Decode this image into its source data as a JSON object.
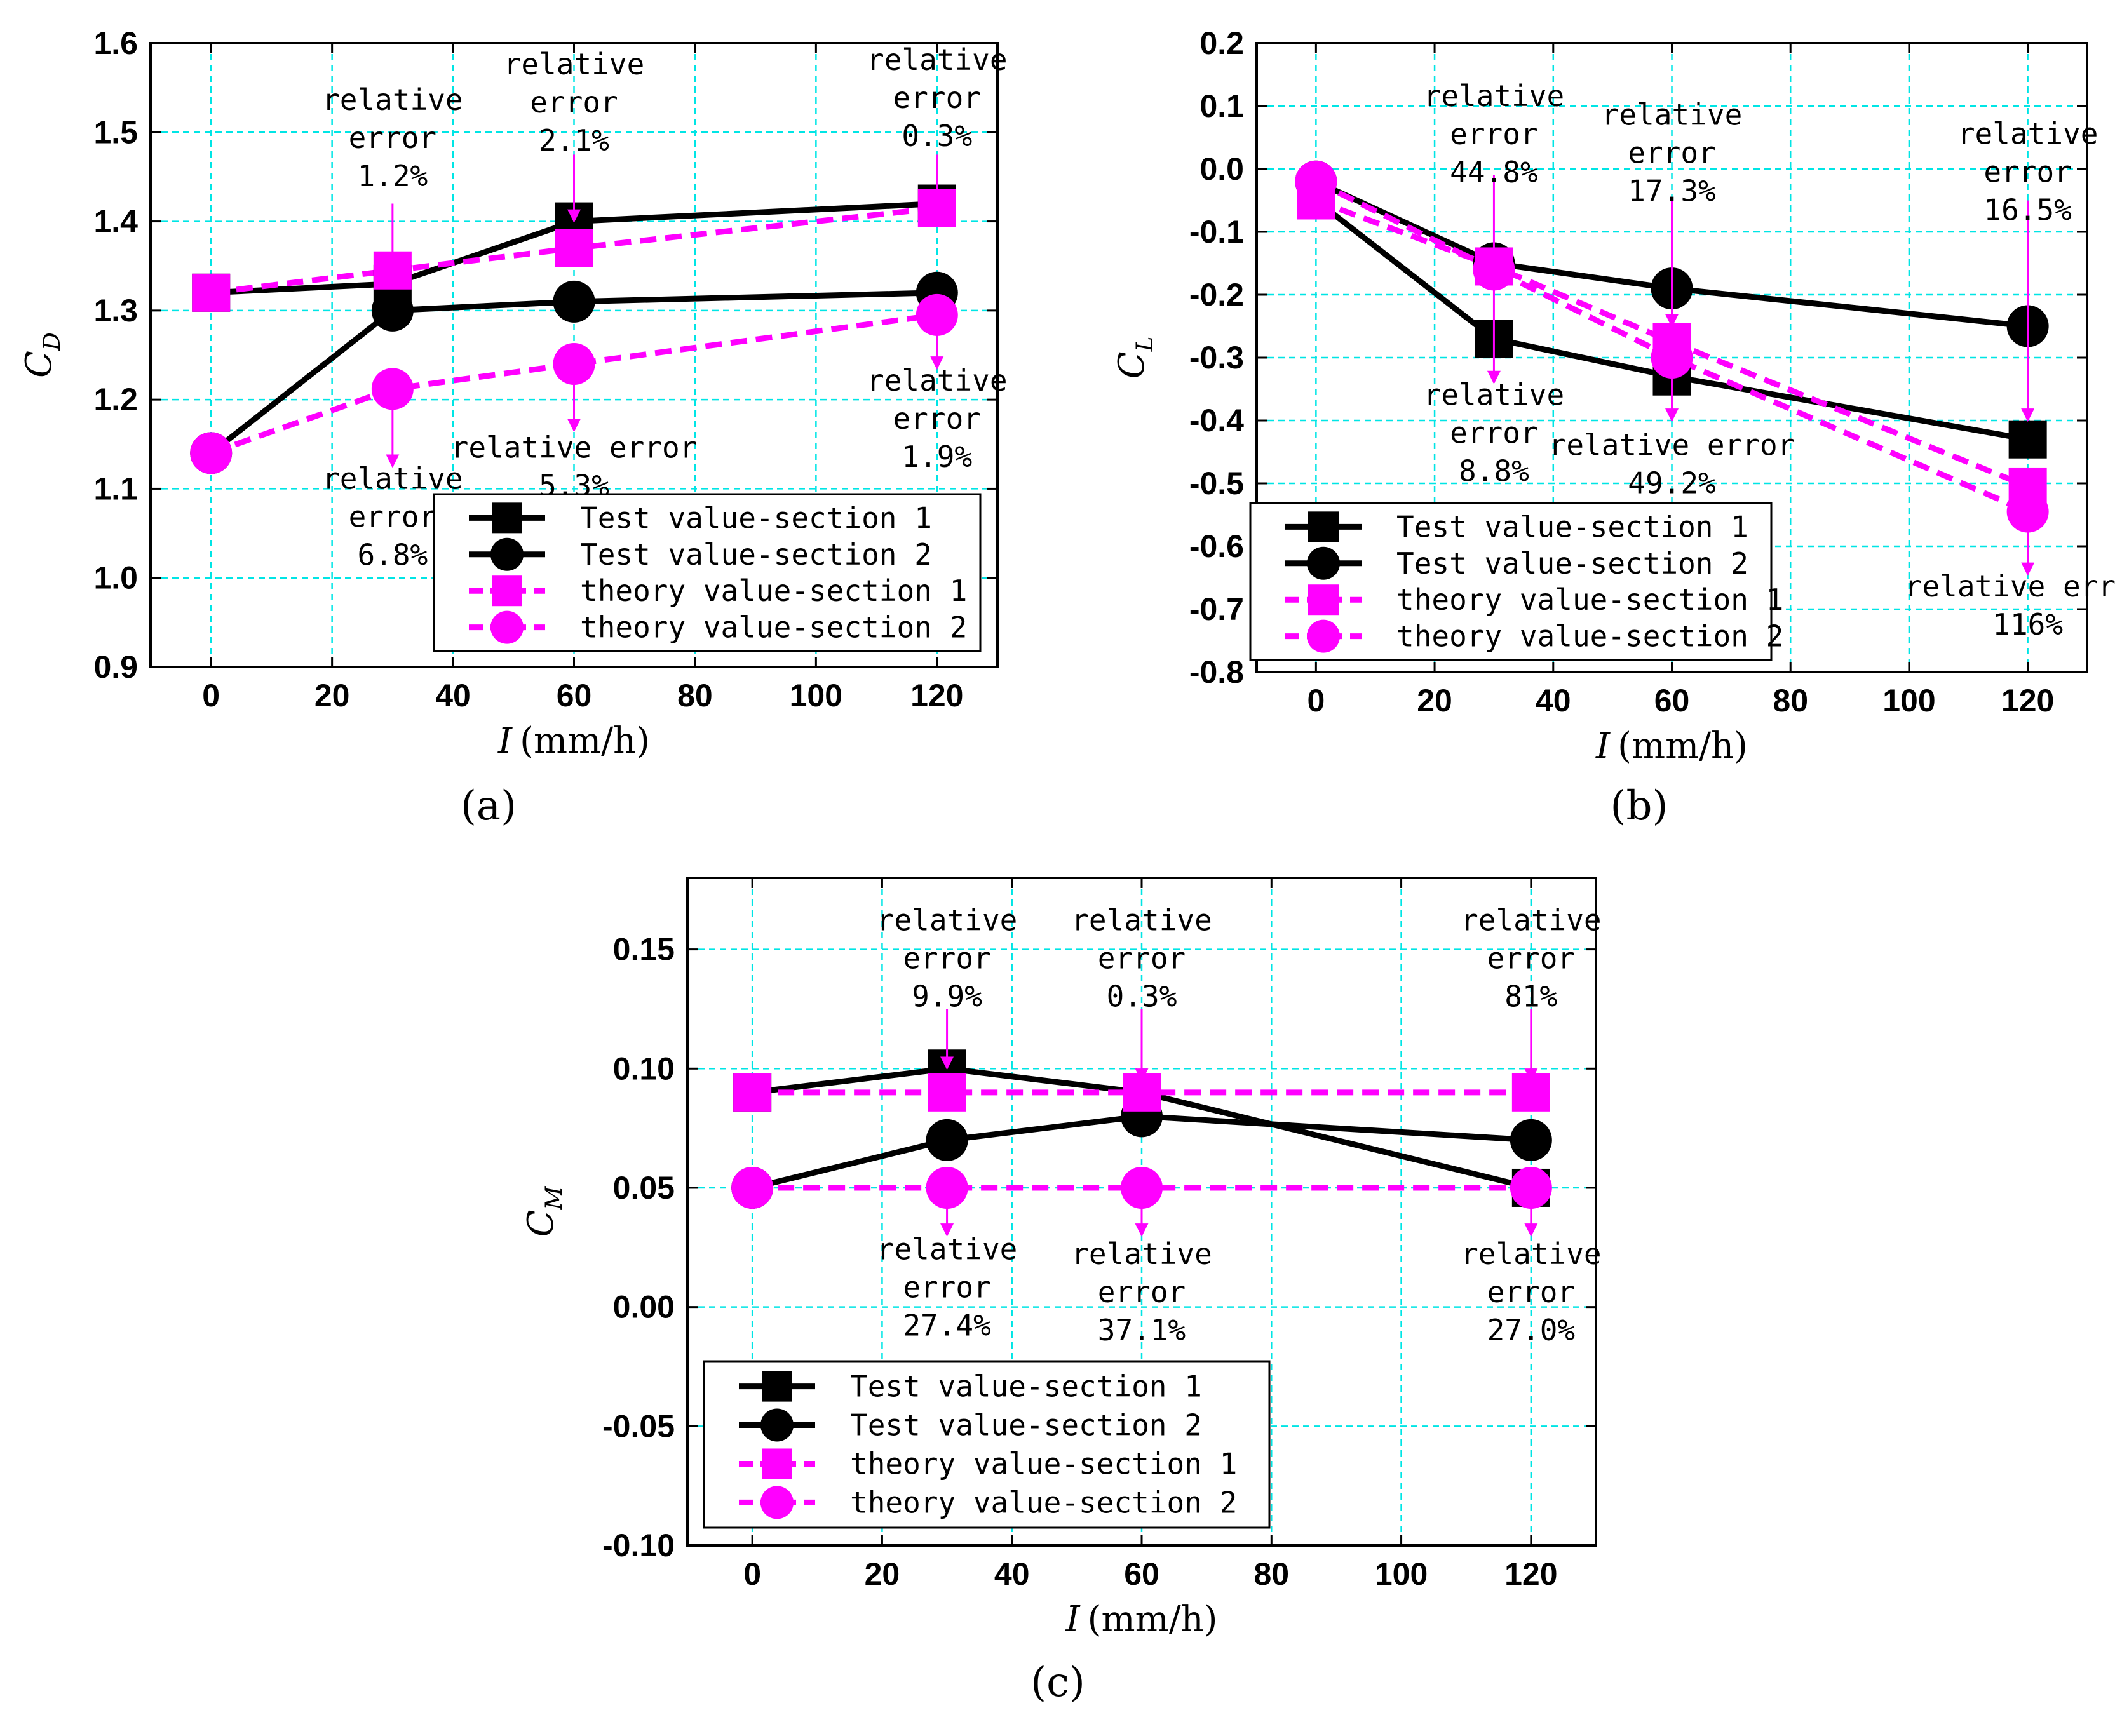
{
  "colors": {
    "test": "#000000",
    "theory": "#ff00ff",
    "grid": "#00e5e5",
    "arrow": "#ff00ff"
  },
  "chart_data": [
    {
      "id": "a",
      "type": "line",
      "subfigure_label": "(a)",
      "ylabel_main": "C",
      "ylabel_sub": "D",
      "xlabel_var": "I",
      "xlabel_unit": "(mm/h)",
      "x": [
        0,
        30,
        60,
        120
      ],
      "xticks": [
        "0",
        "20",
        "40",
        "60",
        "80",
        "100",
        "120"
      ],
      "yticks": [
        "0.9",
        "1.0",
        "1.1",
        "1.2",
        "1.3",
        "1.4",
        "1.5",
        "1.6"
      ],
      "xlim": [
        -10,
        130
      ],
      "ylim": [
        0.9,
        1.6
      ],
      "series": [
        {
          "name": "Test value-section 1",
          "marker": "square",
          "style": "test",
          "values": [
            1.32,
            1.33,
            1.4,
            1.42
          ]
        },
        {
          "name": "Test value-section 2",
          "marker": "circle",
          "style": "test",
          "values": [
            1.14,
            1.3,
            1.31,
            1.32
          ]
        },
        {
          "name": "theory value-section 1",
          "marker": "square",
          "style": "theory",
          "values": [
            1.32,
            1.345,
            1.37,
            1.415
          ]
        },
        {
          "name": "theory value-section 2",
          "marker": "circle",
          "style": "theory",
          "values": [
            1.14,
            1.212,
            1.24,
            1.295
          ]
        }
      ],
      "annotations": [
        {
          "lines": [
            "relative",
            "error",
            "1.2%"
          ],
          "x": 30,
          "arrow_from": 1.42,
          "arrow_to": 1.345,
          "text_y": 1.525
        },
        {
          "lines": [
            "relative",
            "error",
            "2.1%"
          ],
          "x": 60,
          "arrow_from": 1.475,
          "arrow_to": 1.4,
          "text_y": 1.565
        },
        {
          "lines": [
            "relative",
            "error",
            "0.3%"
          ],
          "x": 120,
          "arrow_from": 1.475,
          "arrow_to": 1.42,
          "text_y": 1.57
        },
        {
          "lines": [
            "relative",
            "error",
            "6.8%"
          ],
          "x": 30,
          "arrow_from": 1.195,
          "arrow_to": 1.125,
          "text_y": 1.1
        },
        {
          "lines": [
            "relative error",
            "5.3%"
          ],
          "x": 60,
          "arrow_from": 1.225,
          "arrow_to": 1.165,
          "text_y": 1.135
        },
        {
          "lines": [
            "relative",
            "error",
            "1.9%"
          ],
          "x": 120,
          "arrow_from": 1.285,
          "arrow_to": 1.235,
          "text_y": 1.21
        }
      ],
      "legend_position": "bottom-right"
    },
    {
      "id": "b",
      "type": "line",
      "subfigure_label": "(b)",
      "ylabel_main": "C",
      "ylabel_sub": "L",
      "xlabel_var": "I",
      "xlabel_unit": "(mm/h)",
      "x": [
        0,
        30,
        60,
        120
      ],
      "xticks": [
        "0",
        "20",
        "40",
        "60",
        "80",
        "100",
        "120"
      ],
      "yticks": [
        "-0.8",
        "-0.7",
        "-0.6",
        "-0.5",
        "-0.4",
        "-0.3",
        "-0.2",
        "-0.1",
        "0.0",
        "0.1",
        "0.2"
      ],
      "xlim": [
        -10,
        130
      ],
      "ylim": [
        -0.8,
        0.2
      ],
      "series": [
        {
          "name": "Test value-section 1",
          "marker": "square",
          "style": "test",
          "values": [
            -0.05,
            -0.27,
            -0.33,
            -0.43
          ]
        },
        {
          "name": "Test value-section 2",
          "marker": "circle",
          "style": "test",
          "values": [
            -0.02,
            -0.15,
            -0.19,
            -0.25
          ]
        },
        {
          "name": "theory value-section 1",
          "marker": "square",
          "style": "theory",
          "values": [
            -0.05,
            -0.155,
            -0.275,
            -0.505
          ]
        },
        {
          "name": "theory value-section 2",
          "marker": "circle",
          "style": "theory",
          "values": [
            -0.02,
            -0.16,
            -0.3,
            -0.545
          ]
        }
      ],
      "annotations": [
        {
          "lines": [
            "relative",
            "error",
            "44.8%"
          ],
          "x": 30,
          "arrow_from": -0.01,
          "arrow_to": -0.145,
          "text_y": 0.1
        },
        {
          "lines": [
            "relative",
            "error",
            "17.3%"
          ],
          "x": 60,
          "arrow_from": -0.05,
          "arrow_to": -0.25,
          "text_y": 0.07
        },
        {
          "lines": [
            "relative",
            "error",
            "16.5%"
          ],
          "x": 120,
          "arrow_from": -0.05,
          "arrow_to": -0.4,
          "text_y": 0.04
        },
        {
          "lines": [
            "relative",
            "error",
            "8.8%"
          ],
          "x": 30,
          "arrow_from": -0.17,
          "arrow_to": -0.34,
          "text_y": -0.375
        },
        {
          "lines": [
            "relative error",
            "49.2%"
          ],
          "x": 60,
          "arrow_from": -0.29,
          "arrow_to": -0.4,
          "text_y": -0.455
        },
        {
          "lines": [
            "relative error",
            "116%"
          ],
          "x": 120,
          "arrow_from": -0.56,
          "arrow_to": -0.645,
          "text_y": -0.68
        }
      ],
      "legend_position": "bottom-left"
    },
    {
      "id": "c",
      "type": "line",
      "subfigure_label": "(c)",
      "ylabel_main": "C",
      "ylabel_sub": "M",
      "xlabel_var": "I",
      "xlabel_unit": "(mm/h)",
      "x": [
        0,
        30,
        60,
        120
      ],
      "xticks": [
        "0",
        "20",
        "40",
        "60",
        "80",
        "100",
        "120"
      ],
      "yticks": [
        "-0.10",
        "-0.05",
        "0.00",
        "0.05",
        "0.10",
        "0.15"
      ],
      "xlim": [
        -10,
        130
      ],
      "ylim": [
        -0.1,
        0.18
      ],
      "series": [
        {
          "name": "Test value-section 1",
          "marker": "square",
          "style": "test",
          "values": [
            0.09,
            0.1,
            0.09,
            0.05
          ]
        },
        {
          "name": "Test value-section 2",
          "marker": "circle",
          "style": "test",
          "values": [
            0.05,
            0.07,
            0.08,
            0.07
          ]
        },
        {
          "name": "theory value-section 1",
          "marker": "square",
          "style": "theory",
          "values": [
            0.09,
            0.09,
            0.09,
            0.09
          ]
        },
        {
          "name": "theory value-section 2",
          "marker": "circle",
          "style": "theory",
          "values": [
            0.05,
            0.05,
            0.05,
            0.05
          ]
        }
      ],
      "annotations": [
        {
          "lines": [
            "relative",
            "error",
            "9.9%"
          ],
          "x": 30,
          "arrow_from": 0.125,
          "arrow_to": 0.1,
          "text_y": 0.158
        },
        {
          "lines": [
            "relative",
            "error",
            "0.3%"
          ],
          "x": 60,
          "arrow_from": 0.125,
          "arrow_to": 0.095,
          "text_y": 0.158
        },
        {
          "lines": [
            "relative",
            "error",
            "81%"
          ],
          "x": 120,
          "arrow_from": 0.125,
          "arrow_to": 0.095,
          "text_y": 0.158
        },
        {
          "lines": [
            "relative",
            "error",
            "27.4%"
          ],
          "x": 30,
          "arrow_from": 0.045,
          "arrow_to": 0.03,
          "text_y": 0.02
        },
        {
          "lines": [
            "relative",
            "error",
            "37.1%"
          ],
          "x": 60,
          "arrow_from": 0.045,
          "arrow_to": 0.03,
          "text_y": 0.018
        },
        {
          "lines": [
            "relative",
            "error",
            "27.0%"
          ],
          "x": 120,
          "arrow_from": 0.045,
          "arrow_to": 0.03,
          "text_y": 0.018
        }
      ],
      "legend_position": "bottom-left"
    }
  ]
}
